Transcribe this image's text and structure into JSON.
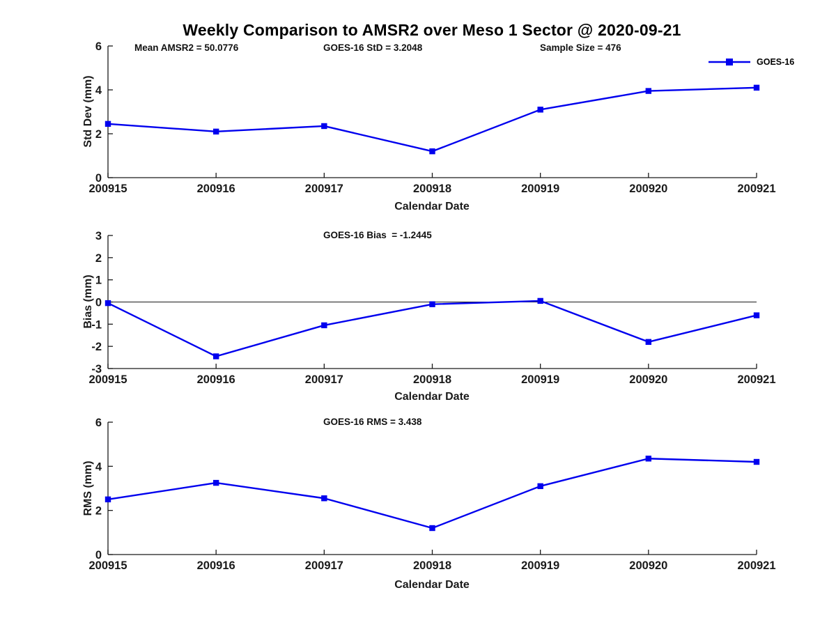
{
  "title": "Weekly Comparison to AMSR2 over Meso 1 Sector @ 2020-09-21",
  "legend": {
    "label": "GOES-16"
  },
  "colors": {
    "series_blue": "#0000EE",
    "axis": "#1a1a1a",
    "annotation_text": "#111111",
    "background": "#ffffff"
  },
  "chart_data": [
    {
      "type": "line",
      "name": "std-dev",
      "annotations": [
        "Mean AMSR2 = 50.0776",
        "GOES-16 StD = 3.2048",
        "Sample Size = 476"
      ],
      "ylabel": "Std Dev (mm)",
      "xlabel": "Calendar Date",
      "categories": [
        "200915",
        "200916",
        "200917",
        "200918",
        "200919",
        "200920",
        "200921"
      ],
      "ylim": [
        0,
        6
      ],
      "yticks": [
        6,
        4,
        2,
        0
      ],
      "grid": false,
      "legend_position": "top-right",
      "series": [
        {
          "name": "GOES-16",
          "values": [
            2.45,
            2.1,
            2.35,
            1.2,
            3.1,
            3.95,
            4.1
          ]
        }
      ]
    },
    {
      "type": "line",
      "name": "bias",
      "annotations": [
        "GOES-16 Bias  = -1.2445"
      ],
      "ylabel": "Bias (mm)",
      "xlabel": "Calendar Date",
      "categories": [
        "200915",
        "200916",
        "200917",
        "200918",
        "200919",
        "200920",
        "200921"
      ],
      "ylim": [
        -3,
        3
      ],
      "yticks": [
        3,
        2,
        1,
        0,
        -1,
        -2,
        -3
      ],
      "zero_line": true,
      "grid": false,
      "series": [
        {
          "name": "GOES-16",
          "values": [
            -0.05,
            -2.45,
            -1.05,
            -0.1,
            0.05,
            -1.8,
            -0.6
          ]
        }
      ]
    },
    {
      "type": "line",
      "name": "rms",
      "annotations": [
        "GOES-16 RMS = 3.438"
      ],
      "ylabel": "RMS (mm)",
      "xlabel": "Calendar Date",
      "categories": [
        "200915",
        "200916",
        "200917",
        "200918",
        "200919",
        "200920",
        "200921"
      ],
      "ylim": [
        0,
        6
      ],
      "yticks": [
        6,
        4,
        2,
        0
      ],
      "grid": false,
      "series": [
        {
          "name": "GOES-16",
          "values": [
            2.5,
            3.25,
            2.55,
            1.2,
            3.1,
            4.35,
            4.2
          ]
        }
      ]
    }
  ]
}
